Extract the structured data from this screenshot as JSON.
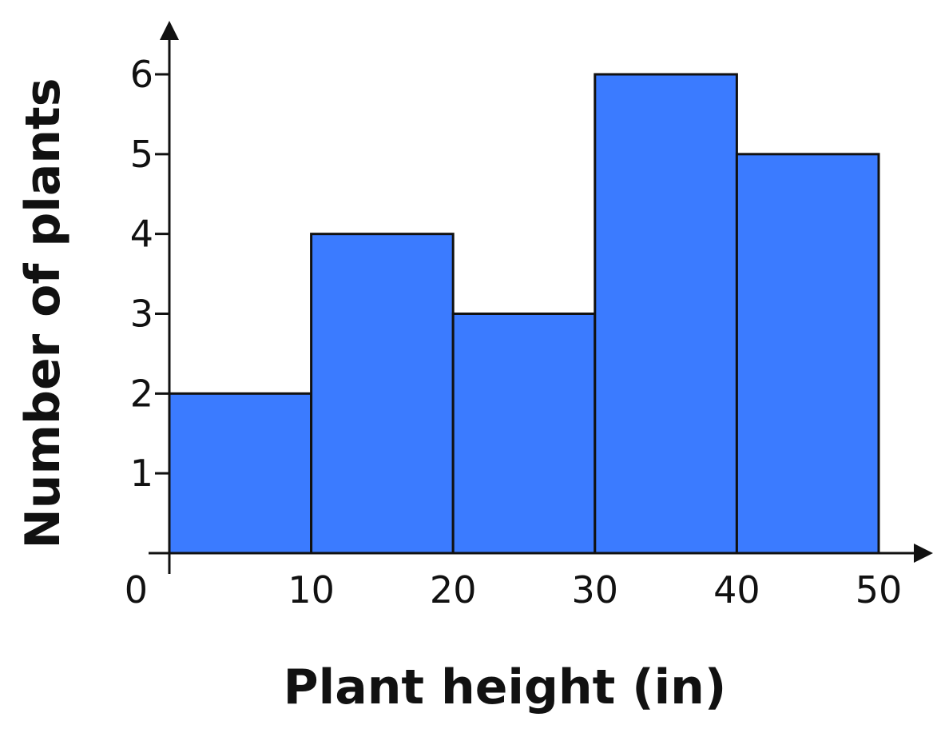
{
  "chart_data": {
    "type": "bar",
    "subtype": "histogram",
    "bins": [
      {
        "start": 0,
        "end": 10,
        "value": 2
      },
      {
        "start": 10,
        "end": 20,
        "value": 4
      },
      {
        "start": 20,
        "end": 30,
        "value": 3
      },
      {
        "start": 30,
        "end": 40,
        "value": 6
      },
      {
        "start": 40,
        "end": 50,
        "value": 5
      }
    ],
    "xlabel": "Plant height (in)",
    "ylabel": "Number of plants",
    "xlim": [
      0,
      50
    ],
    "ylim": [
      0,
      6
    ],
    "xticks": [
      "0",
      "10",
      "20",
      "30",
      "40",
      "50"
    ],
    "yticks": [
      "1",
      "2",
      "3",
      "4",
      "5",
      "6"
    ],
    "grid": false,
    "legend": "none",
    "bar_color": "#3b7bff",
    "edge_color": "#111111"
  }
}
